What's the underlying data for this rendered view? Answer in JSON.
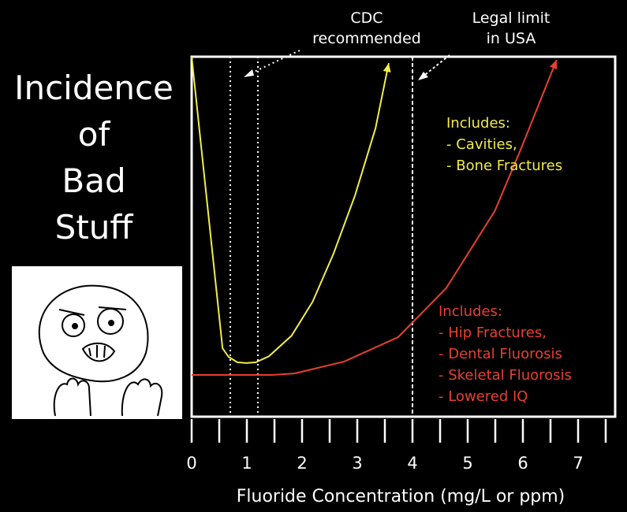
{
  "chart_data": {
    "type": "line",
    "title": "",
    "xlabel": "Fluoride Concentration (mg/L or ppm)",
    "ylabel": [
      "Incidence",
      "of",
      "Bad",
      "Stuff"
    ],
    "xlim": [
      0,
      7.67
    ],
    "ylim": [
      0,
      100
    ],
    "x_ticks": [
      0,
      1,
      2,
      3,
      4,
      5,
      6,
      7
    ],
    "x_minor_tick_step": 0.5,
    "grid": false,
    "y_ticks": false,
    "series": [
      {
        "color": "#f2ec4a",
        "arrow_end": true,
        "points": [
          [
            0,
            100
          ],
          [
            0.56,
            19
          ],
          [
            0.67,
            16.6
          ],
          [
            0.83,
            15.1
          ],
          [
            0.99,
            14.9
          ],
          [
            1.16,
            15.1
          ],
          [
            1.4,
            16.8
          ],
          [
            1.81,
            22.5
          ],
          [
            2.19,
            31.9
          ],
          [
            2.57,
            45.3
          ],
          [
            2.96,
            61.5
          ],
          [
            3.33,
            80.1
          ],
          [
            3.57,
            98.2
          ]
        ]
      },
      {
        "color": "#e8402f",
        "arrow_end": true,
        "points": [
          [
            0,
            11.6
          ],
          [
            1.46,
            11.6
          ],
          [
            1.86,
            12.0
          ],
          [
            2.76,
            15.3
          ],
          [
            3.74,
            22.1
          ],
          [
            4.61,
            35.7
          ],
          [
            5.49,
            57.1
          ],
          [
            5.96,
            74.2
          ],
          [
            6.61,
            99.1
          ]
        ]
      }
    ],
    "reference_lines": [
      {
        "x": 0.7,
        "style": "dotted",
        "group": "cdc"
      },
      {
        "x": 1.2,
        "style": "dotted",
        "group": "cdc"
      },
      {
        "x": 4,
        "style": "dashed",
        "group": "legal"
      }
    ],
    "annotations": {
      "cdc": [
        "CDC",
        "recommended"
      ],
      "legal": [
        "Legal limit",
        "in USA"
      ],
      "yellow_box": [
        "Includes:",
        "- Cavities,",
        "- Bone Fractures"
      ],
      "red_box": [
        "Includes:",
        "- Hip Fractures,",
        "- Dental Fluorosis",
        "- Skeletal Fluorosis",
        "- Lowered IQ"
      ]
    }
  }
}
